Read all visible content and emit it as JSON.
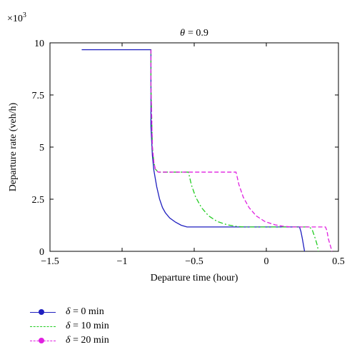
{
  "chart_data": {
    "type": "line",
    "title": "θ = 0.9",
    "title_symbol": "θ",
    "title_value": "= 0.9",
    "xlabel": "Departure time (hour)",
    "ylabel": "Departure rate (veh/h)",
    "y_multiplier": "×10",
    "y_multiplier_exp": "3",
    "xlim": [
      -1.5,
      0.5
    ],
    "ylim": [
      0,
      10
    ],
    "xticks": [
      -1.5,
      -1,
      -0.5,
      0,
      0.5
    ],
    "xtick_labels": [
      "−1.5",
      "−1",
      "−0.5",
      "0",
      "0.5"
    ],
    "yticks": [
      0,
      2.5,
      5,
      7.5,
      10
    ],
    "ytick_labels": [
      "0",
      "2.5",
      "5",
      "7.5",
      "10"
    ],
    "legend_position": "bottom-left (below axes)",
    "series": [
      {
        "name": "δ = 0 min",
        "symbol": "δ",
        "label": "= 0 min",
        "color": "#1f1fbf",
        "style": "solid",
        "points": [
          [
            -1.28,
            9.67
          ],
          [
            -0.8,
            9.67
          ],
          [
            -0.8,
            6.0
          ],
          [
            -0.79,
            4.6
          ],
          [
            -0.78,
            3.9
          ],
          [
            -0.76,
            3.1
          ],
          [
            -0.74,
            2.5
          ],
          [
            -0.72,
            2.1
          ],
          [
            -0.7,
            1.85
          ],
          [
            -0.67,
            1.6
          ],
          [
            -0.63,
            1.4
          ],
          [
            -0.59,
            1.25
          ],
          [
            -0.55,
            1.17
          ],
          [
            0.23,
            1.17
          ],
          [
            0.24,
            0.95
          ],
          [
            0.25,
            0.6
          ],
          [
            0.26,
            0.2
          ],
          [
            0.265,
            0.0
          ]
        ]
      },
      {
        "name": "δ = 10 min",
        "symbol": "δ",
        "label": "= 10 min",
        "color": "#22cc22",
        "style": "dashdot",
        "points": [
          [
            -0.8,
            9.67
          ],
          [
            -0.8,
            8.0
          ],
          [
            -0.79,
            5.0
          ],
          [
            -0.78,
            4.3
          ],
          [
            -0.77,
            3.95
          ],
          [
            -0.75,
            3.8
          ],
          [
            -0.54,
            3.8
          ],
          [
            -0.52,
            3.2
          ],
          [
            -0.49,
            2.6
          ],
          [
            -0.45,
            2.1
          ],
          [
            -0.4,
            1.7
          ],
          [
            -0.34,
            1.43
          ],
          [
            -0.27,
            1.27
          ],
          [
            -0.2,
            1.19
          ],
          [
            -0.15,
            1.17
          ],
          [
            0.3,
            1.17
          ],
          [
            0.32,
            1.0
          ],
          [
            0.34,
            0.6
          ],
          [
            0.355,
            0.25
          ],
          [
            0.36,
            0.0
          ]
        ]
      },
      {
        "name": "δ = 20 min",
        "symbol": "δ",
        "label": "= 20 min",
        "color": "#e020e0",
        "style": "dashed",
        "points": [
          [
            -0.8,
            9.67
          ],
          [
            -0.8,
            8.0
          ],
          [
            -0.79,
            5.0
          ],
          [
            -0.78,
            4.3
          ],
          [
            -0.77,
            3.95
          ],
          [
            -0.75,
            3.8
          ],
          [
            -0.21,
            3.8
          ],
          [
            -0.19,
            3.2
          ],
          [
            -0.16,
            2.6
          ],
          [
            -0.12,
            2.1
          ],
          [
            -0.07,
            1.7
          ],
          [
            -0.01,
            1.43
          ],
          [
            0.06,
            1.27
          ],
          [
            0.13,
            1.19
          ],
          [
            0.18,
            1.17
          ],
          [
            0.41,
            1.17
          ],
          [
            0.42,
            1.0
          ],
          [
            0.43,
            0.6
          ],
          [
            0.445,
            0.25
          ],
          [
            0.455,
            0.0
          ]
        ]
      }
    ]
  }
}
